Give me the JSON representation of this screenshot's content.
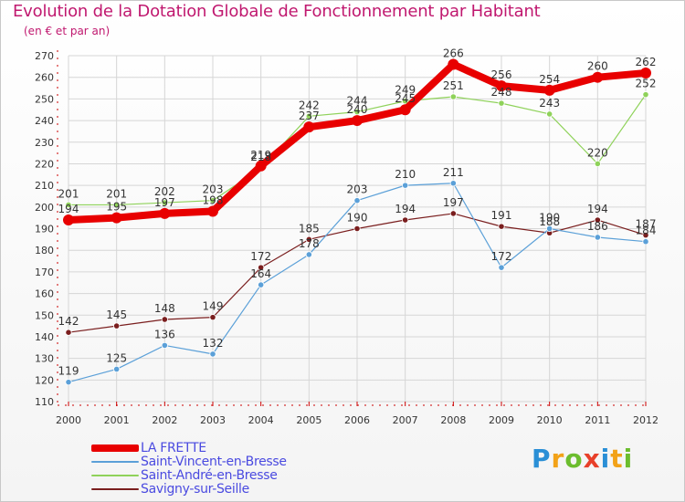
{
  "title": "Evolution de la Dotation Globale de Fonctionnement par Habitant",
  "subtitle": "(en € et par an)",
  "brand": {
    "text": "Proxiti",
    "letters": [
      {
        "ch": "P",
        "color": "#2a8fd6"
      },
      {
        "ch": "r",
        "color": "#f2a218"
      },
      {
        "ch": "o",
        "color": "#6cbd2e"
      },
      {
        "ch": "x",
        "color": "#e8402a"
      },
      {
        "ch": "i",
        "color": "#2a8fd6"
      },
      {
        "ch": "t",
        "color": "#f2a218"
      },
      {
        "ch": "i",
        "color": "#6cbd2e"
      }
    ]
  },
  "colors": {
    "title": "#c0186f",
    "axis": "#cc0000",
    "grid": "#d6d6d6",
    "legend_text": "#4a4ae0"
  },
  "chart_data": {
    "type": "line",
    "title": "Evolution de la Dotation Globale de Fonctionnement par Habitant",
    "subtitle": "(en € et par an)",
    "x": [
      "2000",
      "2001",
      "2002",
      "2003",
      "2004",
      "2005",
      "2006",
      "2007",
      "2008",
      "2009",
      "2010",
      "2011",
      "2012"
    ],
    "ylim": [
      110,
      270
    ],
    "yticks": [
      110,
      120,
      130,
      140,
      150,
      160,
      170,
      180,
      190,
      200,
      210,
      220,
      230,
      240,
      250,
      260,
      270
    ],
    "grid": true,
    "legend_position": "bottom-left",
    "series": [
      {
        "name": "LA FRETTE",
        "color": "#e80000",
        "values": [
          194,
          195,
          197,
          198,
          219,
          237,
          240,
          245,
          266,
          256,
          254,
          260,
          262
        ]
      },
      {
        "name": "Saint-Vincent-en-Bresse",
        "color": "#5ba0d8",
        "values": [
          119,
          125,
          136,
          132,
          164,
          178,
          203,
          210,
          211,
          172,
          190,
          186,
          184
        ]
      },
      {
        "name": "Saint-André-en-Bresse",
        "color": "#8fd25a",
        "values": [
          201,
          201,
          202,
          203,
          218,
          242,
          244,
          249,
          251,
          248,
          243,
          220,
          252
        ]
      },
      {
        "name": "Savigny-sur-Seille",
        "color": "#7a1e1e",
        "values": [
          142,
          145,
          148,
          149,
          172,
          185,
          190,
          194,
          197,
          191,
          188,
          194,
          187
        ]
      }
    ]
  }
}
